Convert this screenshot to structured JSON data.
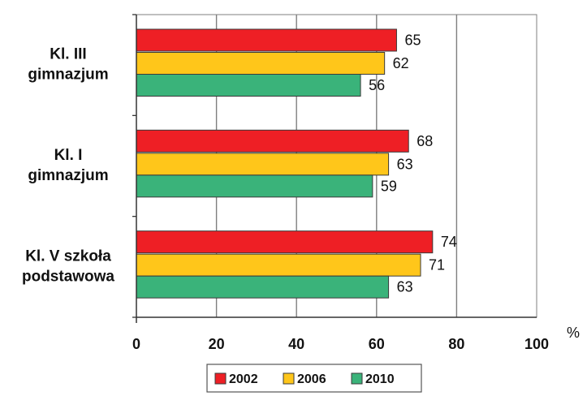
{
  "chart_data": {
    "type": "bar",
    "orientation": "horizontal",
    "categories": [
      "Kl. III gimnazjum",
      "Kl. I gimnazjum",
      "Kl. V szkoła podstawowa"
    ],
    "category_lines": [
      [
        "Kl. III",
        "gimnazjum"
      ],
      [
        "Kl. I",
        "gimnazjum"
      ],
      [
        "Kl. V szkoła",
        "podstawowa"
      ]
    ],
    "series": [
      {
        "name": "2002",
        "color": "#ee1f25",
        "values": [
          65,
          68,
          74
        ]
      },
      {
        "name": "2006",
        "color": "#ffc61a",
        "values": [
          62,
          63,
          71
        ]
      },
      {
        "name": "2010",
        "color": "#3ab37a",
        "values": [
          56,
          59,
          63
        ]
      }
    ],
    "xlim": [
      0,
      100
    ],
    "xticks": [
      "0",
      "20",
      "40",
      "60",
      "80",
      "100"
    ],
    "unit": "%",
    "grid": true,
    "legend_position": "bottom"
  }
}
